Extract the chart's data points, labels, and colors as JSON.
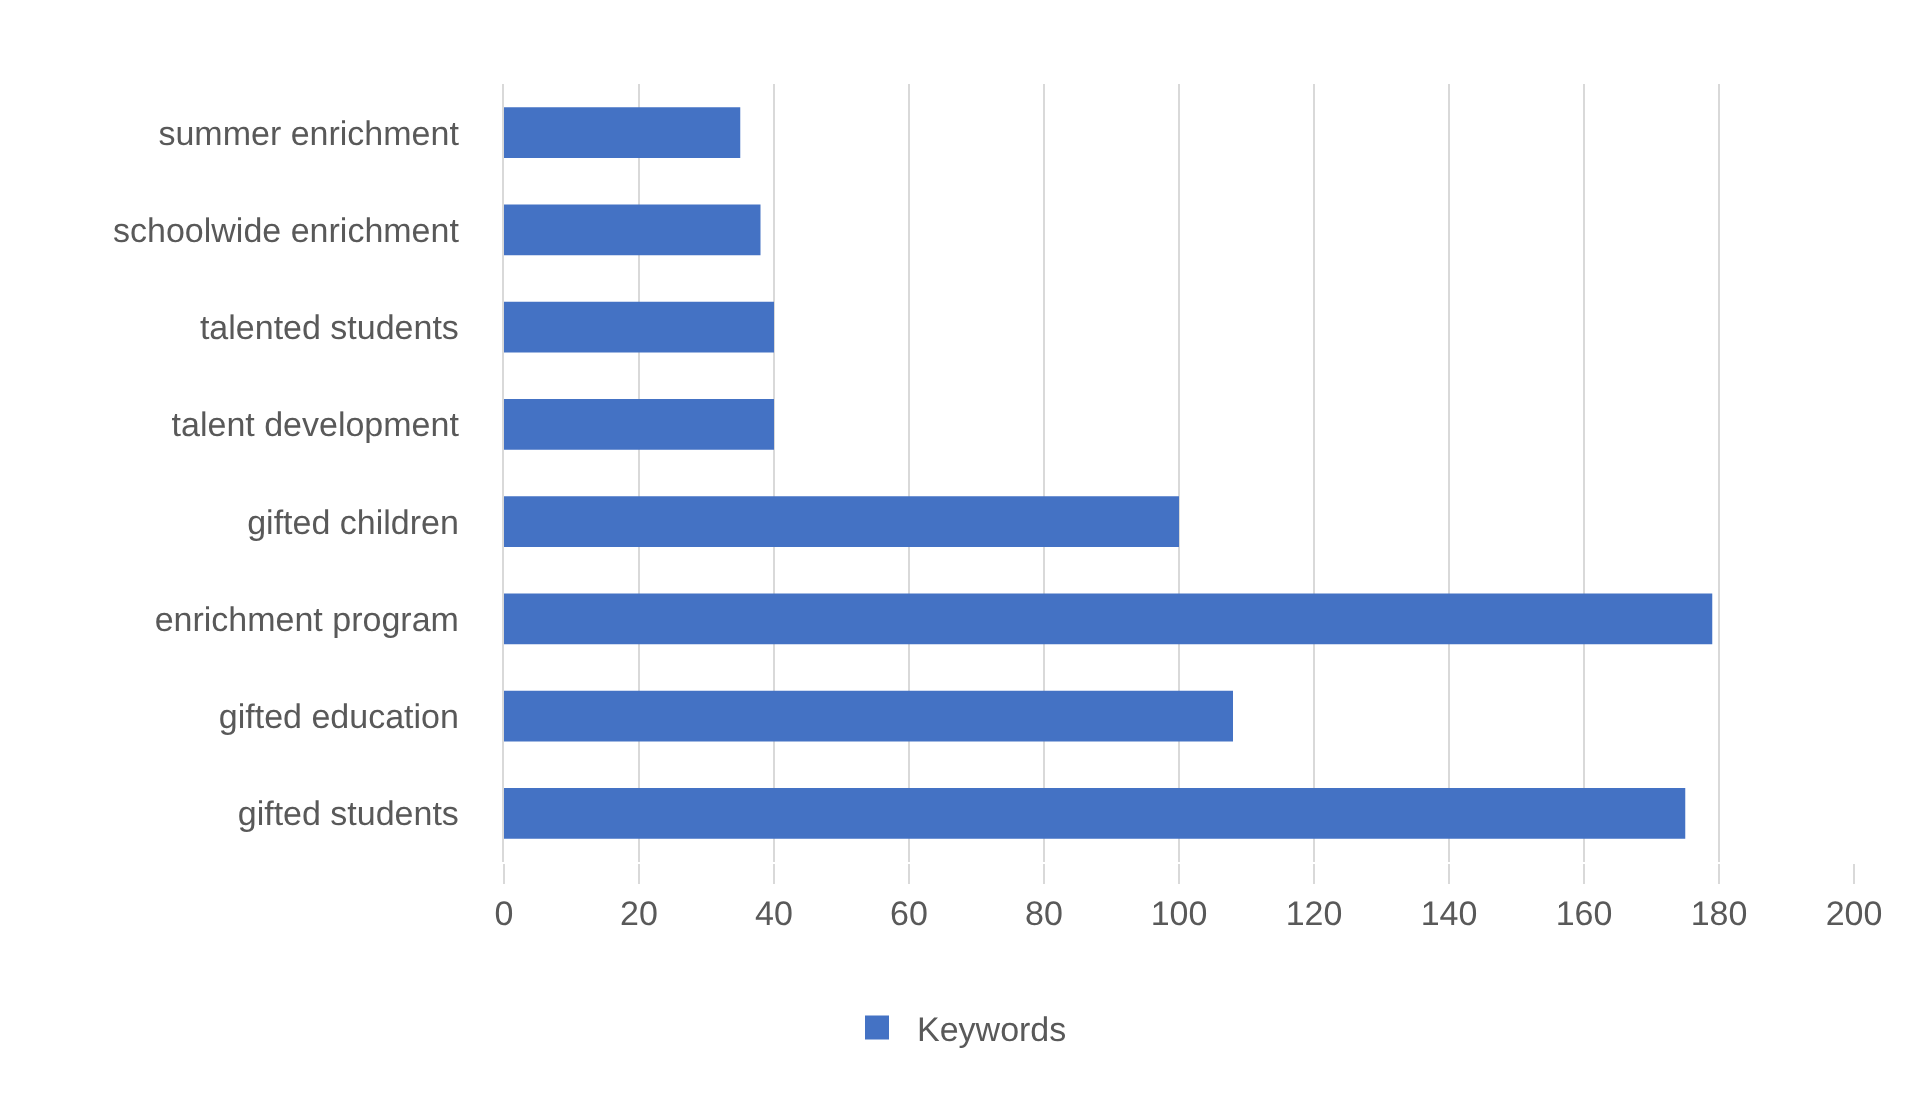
{
  "chart_data": {
    "type": "bar",
    "orientation": "horizontal",
    "categories": [
      "summer enrichment",
      "schoolwide enrichment",
      "talented students",
      "talent development",
      "gifted children",
      "enrichment program",
      "gifted education",
      "gifted students"
    ],
    "series": [
      {
        "name": "Keywords",
        "color": "#4472c4",
        "values": [
          35,
          38,
          40,
          40,
          100,
          179,
          108,
          175
        ]
      }
    ],
    "xlim": [
      0,
      200
    ],
    "xticks": [
      0,
      20,
      40,
      60,
      80,
      100,
      120,
      140,
      160,
      180,
      200
    ],
    "grid": "x",
    "legend": "bottom"
  }
}
